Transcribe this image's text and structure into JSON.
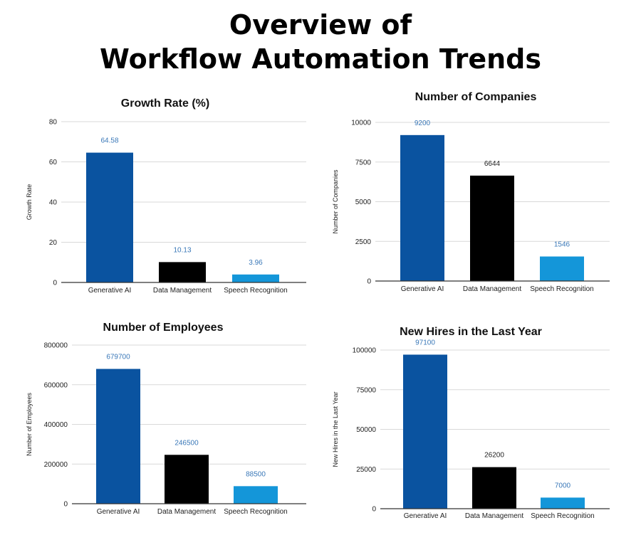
{
  "page": {
    "title_line1": "Overview of",
    "title_line2": "Workflow Automation Trends"
  },
  "colors": {
    "Generative AI": "#0a53a0",
    "Data Management": "#000000",
    "Speech Recognition": "#1496d9",
    "gridline": "#d9d9d9",
    "axis": "#333333"
  },
  "chart_data": [
    {
      "type": "bar",
      "title": "Growth Rate (%)",
      "ylabel": "Growth Rate",
      "categories": [
        "Generative AI",
        "Data Management",
        "Speech Recognition"
      ],
      "values": [
        64.58,
        10.13,
        3.96
      ],
      "data_labels": [
        "64.58",
        "10.13",
        "3.96"
      ],
      "label_colors": [
        "#3a78b8",
        "#3a78b8",
        "#3a78b8"
      ],
      "ylim": [
        0,
        80
      ],
      "yticks": [
        0,
        20,
        40,
        60,
        80
      ],
      "grid": true
    },
    {
      "type": "bar",
      "title": "Number of Companies",
      "ylabel": "Number of Companies",
      "categories": [
        "Generative AI",
        "Data Management",
        "Speech Recognition"
      ],
      "values": [
        9200,
        6644,
        1546
      ],
      "data_labels": [
        "9200",
        "6644",
        "1546"
      ],
      "label_colors": [
        "#3a78b8",
        "#222222",
        "#3a78b8"
      ],
      "ylim": [
        0,
        10000
      ],
      "yticks": [
        0,
        2500,
        5000,
        7500,
        10000
      ],
      "grid": true
    },
    {
      "type": "bar",
      "title": "Number of Employees",
      "ylabel": "Number of Employees",
      "categories": [
        "Generative AI",
        "Data Management",
        "Speech Recognition"
      ],
      "values": [
        679700,
        246500,
        88500
      ],
      "data_labels": [
        "679700",
        "246500",
        "88500"
      ],
      "label_colors": [
        "#3a78b8",
        "#3a78b8",
        "#3a78b8"
      ],
      "ylim": [
        0,
        800000
      ],
      "yticks": [
        0,
        200000,
        400000,
        600000,
        800000
      ],
      "grid": true
    },
    {
      "type": "bar",
      "title": "New Hires in the Last Year",
      "ylabel": "New Hires in the Last Year",
      "categories": [
        "Generative AI",
        "Data Management",
        "Speech Recognition"
      ],
      "values": [
        97100,
        26200,
        7000
      ],
      "data_labels": [
        "97100",
        "26200",
        "7000"
      ],
      "label_colors": [
        "#3a78b8",
        "#222222",
        "#3a78b8"
      ],
      "ylim": [
        0,
        100000
      ],
      "yticks": [
        0,
        25000,
        50000,
        75000,
        100000
      ],
      "grid": true
    }
  ]
}
